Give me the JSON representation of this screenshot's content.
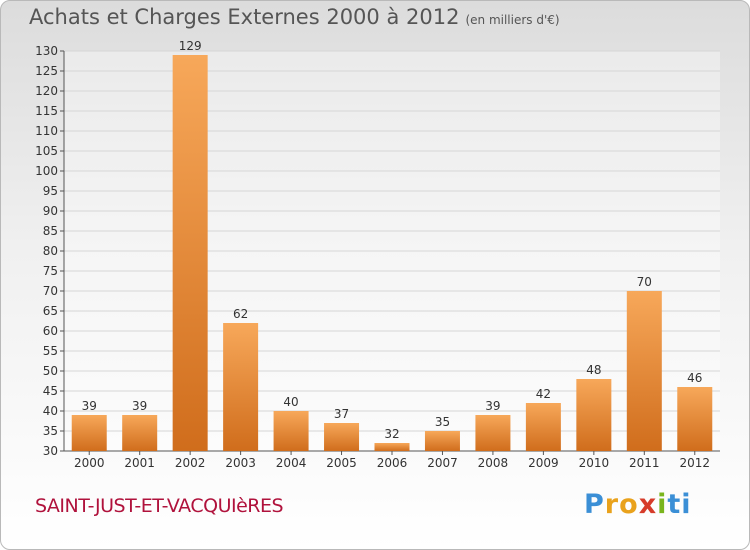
{
  "header": {
    "title": "Achats et Charges Externes 2000 à 2012",
    "unit": "(en milliers d'€)"
  },
  "footer": {
    "town": "SAINT-JUST-ET-VACQUIèRES",
    "logo": "Proxiti"
  },
  "colors": {
    "bar_light": "#f7a85a",
    "bar_dark": "#d06d1c",
    "grid": "#d6d6d6",
    "axis_text": "#333333"
  },
  "chart_data": {
    "type": "bar",
    "title": "Achats et Charges Externes 2000 à 2012",
    "subtitle": "(en milliers d'€)",
    "categories": [
      "2000",
      "2001",
      "2002",
      "2003",
      "2004",
      "2005",
      "2006",
      "2007",
      "2008",
      "2009",
      "2010",
      "2011",
      "2012"
    ],
    "values": [
      39,
      39,
      129,
      62,
      40,
      37,
      32,
      35,
      39,
      42,
      48,
      70,
      46
    ],
    "ylim": [
      30,
      130
    ],
    "yticks": [
      30,
      35,
      40,
      45,
      50,
      55,
      60,
      65,
      70,
      75,
      80,
      85,
      90,
      95,
      100,
      105,
      110,
      115,
      120,
      125,
      130
    ],
    "grid": true,
    "legend": "none"
  }
}
